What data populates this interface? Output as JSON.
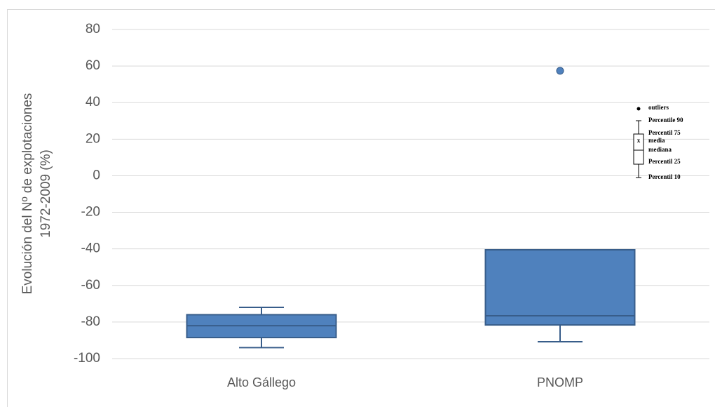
{
  "chart_data": {
    "type": "box",
    "ylabel": [
      "Evolución del Nº de explotaciones",
      "1972-2009 (%)"
    ],
    "categories": [
      "Alto Gállego",
      "PNOMP"
    ],
    "boxes": [
      {
        "whisker_low": -94,
        "q1": -88.5,
        "median": -82,
        "q3": -76,
        "whisker_high": -72,
        "outliers": []
      },
      {
        "whisker_low": -90.8,
        "q1": -81.6,
        "median": -76.6,
        "q3": -40.5,
        "whisker_high": -40.5,
        "outliers": [
          57.4
        ]
      }
    ],
    "color": "#4f81bd",
    "ylim": [
      -100,
      80
    ],
    "yticks": [
      -100,
      -80,
      -60,
      -40,
      -20,
      0,
      20,
      40,
      60,
      80
    ],
    "grid": true,
    "legend": {
      "outliers": "outliers",
      "p90": "Percentile 90",
      "p75": "Percentil 75",
      "mean_symbol": "x",
      "mean": "media",
      "median": "mediana",
      "p25": "Percentil 25",
      "p10": "Percentil 10"
    }
  }
}
